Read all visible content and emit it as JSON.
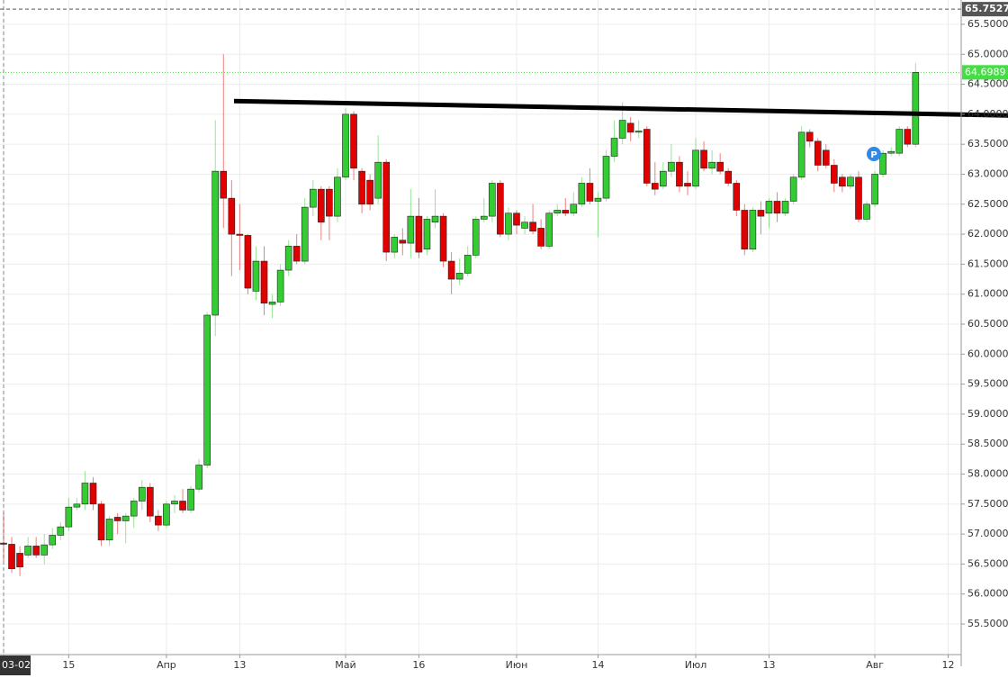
{
  "chart_data": {
    "type": "candlestick",
    "open": [
      56.85,
      56.83,
      56.68,
      56.65,
      56.8,
      56.65,
      56.82,
      56.98,
      57.12,
      57.45,
      57.5,
      57.85,
      57.5,
      56.9,
      57.28,
      57.22,
      57.3,
      57.55,
      57.78,
      57.3,
      57.15,
      57.5,
      57.55,
      57.4,
      57.75,
      58.15,
      60.65,
      63.05,
      62.6,
      62.0,
      61.98,
      61.05,
      61.55,
      60.83,
      60.87,
      61.4,
      61.8,
      61.55,
      62.45,
      62.75,
      62.75,
      62.3,
      62.95,
      64.0,
      63.05,
      62.9,
      62.6,
      63.2,
      61.7,
      61.9,
      61.85,
      62.3,
      61.75,
      62.2,
      62.3,
      61.55,
      61.25,
      61.35,
      61.65,
      62.25,
      62.3,
      62.85,
      62.0,
      62.35,
      62.1,
      62.2,
      62.1,
      61.8,
      62.35,
      62.4,
      62.35,
      62.5,
      62.85,
      62.55,
      62.6,
      63.3,
      63.6,
      63.85,
      63.7,
      63.75,
      62.85,
      62.8,
      63.05,
      63.2,
      62.85,
      62.8,
      63.4,
      63.1,
      63.2,
      63.05,
      62.85,
      62.4,
      61.75,
      62.4,
      62.35,
      62.55,
      62.35,
      62.55,
      62.95,
      63.7,
      63.55,
      63.4,
      63.15,
      62.95,
      62.8,
      62.95,
      62.25,
      62.5,
      63.0,
      63.35,
      63.35,
      63.75,
      63.5
    ],
    "high": [
      57.35,
      56.95,
      56.8,
      56.95,
      56.95,
      57.0,
      57.1,
      57.2,
      57.6,
      57.6,
      58.05,
      57.95,
      57.55,
      57.3,
      57.35,
      57.35,
      57.6,
      57.9,
      57.85,
      57.4,
      57.55,
      57.65,
      57.75,
      57.8,
      58.25,
      60.7,
      63.9,
      65.0,
      62.9,
      62.5,
      62.0,
      61.8,
      61.8,
      61.0,
      61.5,
      61.9,
      62.0,
      62.6,
      62.9,
      62.8,
      62.8,
      63.1,
      64.1,
      64.05,
      63.1,
      63.0,
      63.65,
      63.25,
      62.0,
      62.1,
      62.75,
      62.6,
      62.3,
      62.75,
      62.35,
      61.7,
      61.6,
      61.8,
      62.3,
      62.6,
      62.9,
      62.9,
      62.45,
      62.4,
      62.3,
      62.5,
      62.25,
      62.4,
      62.5,
      62.6,
      62.7,
      62.95,
      63.1,
      62.7,
      63.4,
      63.9,
      64.2,
      63.95,
      63.9,
      63.8,
      63.2,
      63.2,
      63.5,
      63.3,
      63.05,
      63.6,
      63.55,
      63.4,
      63.35,
      63.1,
      62.9,
      62.5,
      62.45,
      62.55,
      62.6,
      62.7,
      62.6,
      63.0,
      63.8,
      63.75,
      63.6,
      63.5,
      63.25,
      63.0,
      63.0,
      63.05,
      62.55,
      63.05,
      63.4,
      63.45,
      63.8,
      63.8,
      64.85
    ],
    "low": [
      56.55,
      56.35,
      56.3,
      56.6,
      56.6,
      56.5,
      56.75,
      56.9,
      57.05,
      57.4,
      57.4,
      57.4,
      56.8,
      56.8,
      57.0,
      56.85,
      57.1,
      57.4,
      57.2,
      57.05,
      57.1,
      57.35,
      57.35,
      57.35,
      57.7,
      58.1,
      60.3,
      62.1,
      61.3,
      61.4,
      61.0,
      60.9,
      60.65,
      60.6,
      60.8,
      61.3,
      61.5,
      61.5,
      62.3,
      61.9,
      61.9,
      62.2,
      62.9,
      62.9,
      62.35,
      62.4,
      62.5,
      61.55,
      61.6,
      61.65,
      61.6,
      61.6,
      61.65,
      62.1,
      61.45,
      61.0,
      61.15,
      61.3,
      61.6,
      62.2,
      62.2,
      61.95,
      61.9,
      62.0,
      62.0,
      62.0,
      61.75,
      61.75,
      62.3,
      62.3,
      62.3,
      62.45,
      62.5,
      61.95,
      62.55,
      63.2,
      63.5,
      63.55,
      63.6,
      62.8,
      62.65,
      62.75,
      62.95,
      62.7,
      62.65,
      62.75,
      63.05,
      63.0,
      63.0,
      62.8,
      62.3,
      61.65,
      61.7,
      62.0,
      62.1,
      62.2,
      62.3,
      62.5,
      62.9,
      63.45,
      63.05,
      63.1,
      62.7,
      62.7,
      62.75,
      62.2,
      62.2,
      62.45,
      62.95,
      63.3,
      63.3,
      63.45,
      63.45
    ],
    "close": [
      56.83,
      56.42,
      56.45,
      56.8,
      56.65,
      56.82,
      56.98,
      57.12,
      57.45,
      57.5,
      57.85,
      57.5,
      56.9,
      57.25,
      57.22,
      57.3,
      57.55,
      57.78,
      57.3,
      57.15,
      57.5,
      57.55,
      57.4,
      57.75,
      58.15,
      60.65,
      63.05,
      62.6,
      62.0,
      61.98,
      61.1,
      61.55,
      60.85,
      60.87,
      61.4,
      61.8,
      61.55,
      62.45,
      62.75,
      62.2,
      62.3,
      62.95,
      64.0,
      63.1,
      62.5,
      62.5,
      63.2,
      61.7,
      61.95,
      61.85,
      62.3,
      61.7,
      62.25,
      62.3,
      61.55,
      61.25,
      61.35,
      61.65,
      62.25,
      62.3,
      62.85,
      62.0,
      62.35,
      62.15,
      62.2,
      62.05,
      61.8,
      62.35,
      62.4,
      62.35,
      62.5,
      62.85,
      62.55,
      62.6,
      63.3,
      63.6,
      63.9,
      63.7,
      63.72,
      62.85,
      62.75,
      63.05,
      63.2,
      62.8,
      62.8,
      63.4,
      63.1,
      63.2,
      63.05,
      62.85,
      62.4,
      61.75,
      62.4,
      62.3,
      62.55,
      62.35,
      62.55,
      62.95,
      63.7,
      63.55,
      63.15,
      63.15,
      62.85,
      62.8,
      62.95,
      62.25,
      62.5,
      63.0,
      63.35,
      63.38,
      63.75,
      63.5,
      64.6989
    ],
    "up_color": "#33cc33",
    "down_color": "#e00000",
    "xlim": [
      -0.44,
      117.6
    ],
    "xticks": [
      {
        "value": 0,
        "label": "03-02"
      },
      {
        "value": 8,
        "label": "15"
      },
      {
        "value": 20,
        "label": "Апр"
      },
      {
        "value": 29,
        "label": "13"
      },
      {
        "value": 42,
        "label": "Май"
      },
      {
        "value": 51,
        "label": "16"
      },
      {
        "value": 63,
        "label": "Июн"
      },
      {
        "value": 73,
        "label": "14"
      },
      {
        "value": 85,
        "label": "Июл"
      },
      {
        "value": 94,
        "label": "13"
      },
      {
        "value": 107,
        "label": "Авг"
      },
      {
        "value": 116,
        "label": "12"
      }
    ],
    "ylim": [
      54.99,
      65.905
    ],
    "yticks": [
      {
        "value": 55.5,
        "label": "55.5000"
      },
      {
        "value": 56,
        "label": "56.0000"
      },
      {
        "value": 56.5,
        "label": "56.5000"
      },
      {
        "value": 57,
        "label": "57.0000"
      },
      {
        "value": 57.5,
        "label": "57.5000"
      },
      {
        "value": 58,
        "label": "58.0000"
      },
      {
        "value": 58.5,
        "label": "58.5000"
      },
      {
        "value": 59,
        "label": "59.0000"
      },
      {
        "value": 59.5,
        "label": "59.5000"
      },
      {
        "value": 60,
        "label": "60.0000"
      },
      {
        "value": 60.5,
        "label": "60.5000"
      },
      {
        "value": 61,
        "label": "61.0000"
      },
      {
        "value": 61.5,
        "label": "61.5000"
      },
      {
        "value": 62,
        "label": "62.0000"
      },
      {
        "value": 62.5,
        "label": "62.5000"
      },
      {
        "value": 63,
        "label": "63.0000"
      },
      {
        "value": 63.5,
        "label": "63.5000"
      },
      {
        "value": 64,
        "label": "64.0000"
      },
      {
        "value": 64.5,
        "label": "64.5000"
      },
      {
        "value": 65,
        "label": "65.0000"
      },
      {
        "value": 65.5,
        "label": "65.5000"
      }
    ],
    "grid": true,
    "last_price": {
      "value": 64.6989,
      "label": "64.6989",
      "color": "#44dd44"
    },
    "high_line": {
      "value": 65.7527,
      "label": "65.7527",
      "color": "#555555"
    },
    "trendline": {
      "x": [
        28.3,
        123.4
      ],
      "y": [
        64.22,
        63.98
      ],
      "color": "#000000"
    },
    "marker": {
      "label": "P",
      "color": "#2e8ae6"
    }
  }
}
